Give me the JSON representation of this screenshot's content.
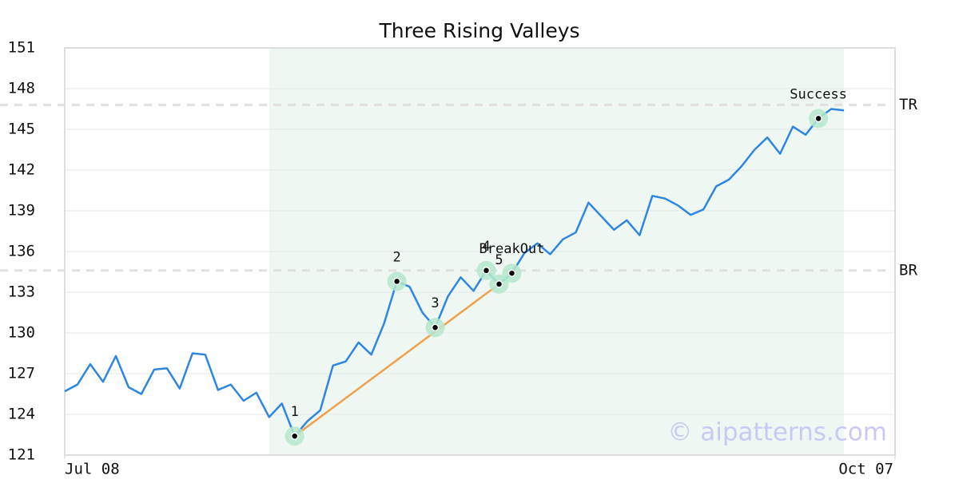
{
  "chart_data": {
    "type": "line",
    "title": "Three Rising Valleys",
    "x": [
      0,
      1,
      2,
      3,
      4,
      5,
      6,
      7,
      8,
      9,
      10,
      11,
      12,
      13,
      14,
      15,
      16,
      17,
      18,
      19,
      20,
      21,
      22,
      23,
      24,
      25,
      26,
      27,
      28,
      29,
      30,
      31,
      32,
      33,
      34,
      35,
      36,
      37,
      38,
      39,
      40,
      41,
      42,
      43,
      44,
      45,
      46,
      47,
      48,
      49,
      50,
      51,
      52,
      53,
      54,
      55,
      56,
      57,
      58,
      59,
      60,
      61
    ],
    "series": [
      {
        "color": "#2e86de",
        "values": [
          125.7,
          126.2,
          127.7,
          126.4,
          128.3,
          126.0,
          125.5,
          127.3,
          127.4,
          125.9,
          128.5,
          128.4,
          125.8,
          126.2,
          125.0,
          125.6,
          123.8,
          124.8,
          122.4,
          123.5,
          124.3,
          127.6,
          127.9,
          129.3,
          128.4,
          130.7,
          133.8,
          133.4,
          131.5,
          130.4,
          132.7,
          134.1,
          133.1,
          134.6,
          133.6,
          134.4,
          135.9,
          136.6,
          135.8,
          136.9,
          137.4,
          139.6,
          138.6,
          137.6,
          138.3,
          137.2,
          140.1,
          139.9,
          139.4,
          138.7,
          139.1,
          140.8,
          141.3,
          142.3,
          143.5,
          144.4,
          143.2,
          145.2,
          144.6,
          145.8,
          146.5,
          146.4
        ]
      }
    ],
    "xlim": [
      0,
      65
    ],
    "xticks": [
      {
        "value": 0,
        "label": "Jul 08"
      },
      {
        "value": 65,
        "label": "Oct 07"
      }
    ],
    "ylim": [
      121,
      151
    ],
    "yticks": [
      121,
      124,
      127,
      130,
      133,
      136,
      139,
      142,
      145,
      148,
      151
    ],
    "grid": true,
    "shaded_range": {
      "xlim": [
        16,
        61
      ],
      "color": "#eef7f2"
    },
    "hlines": [
      {
        "label": "TR",
        "value": 146.8
      },
      {
        "label": "BR",
        "value": 134.6
      }
    ],
    "trendline": {
      "x": [
        18,
        34
      ],
      "y": [
        122.4,
        133.6
      ],
      "color": "#f2a04a"
    },
    "annotations": [
      {
        "text": "1",
        "x": 18,
        "y": 122.4
      },
      {
        "text": "2",
        "x": 26,
        "y": 133.8
      },
      {
        "text": "3",
        "x": 29,
        "y": 130.4
      },
      {
        "text": "4",
        "x": 33,
        "y": 134.6
      },
      {
        "text": "5",
        "x": 34,
        "y": 133.6
      },
      {
        "text": "BreakOut",
        "x": 35,
        "y": 134.4
      },
      {
        "text": "Success",
        "x": 59,
        "y": 145.8
      }
    ],
    "watermark": "© aipatterns.com"
  }
}
